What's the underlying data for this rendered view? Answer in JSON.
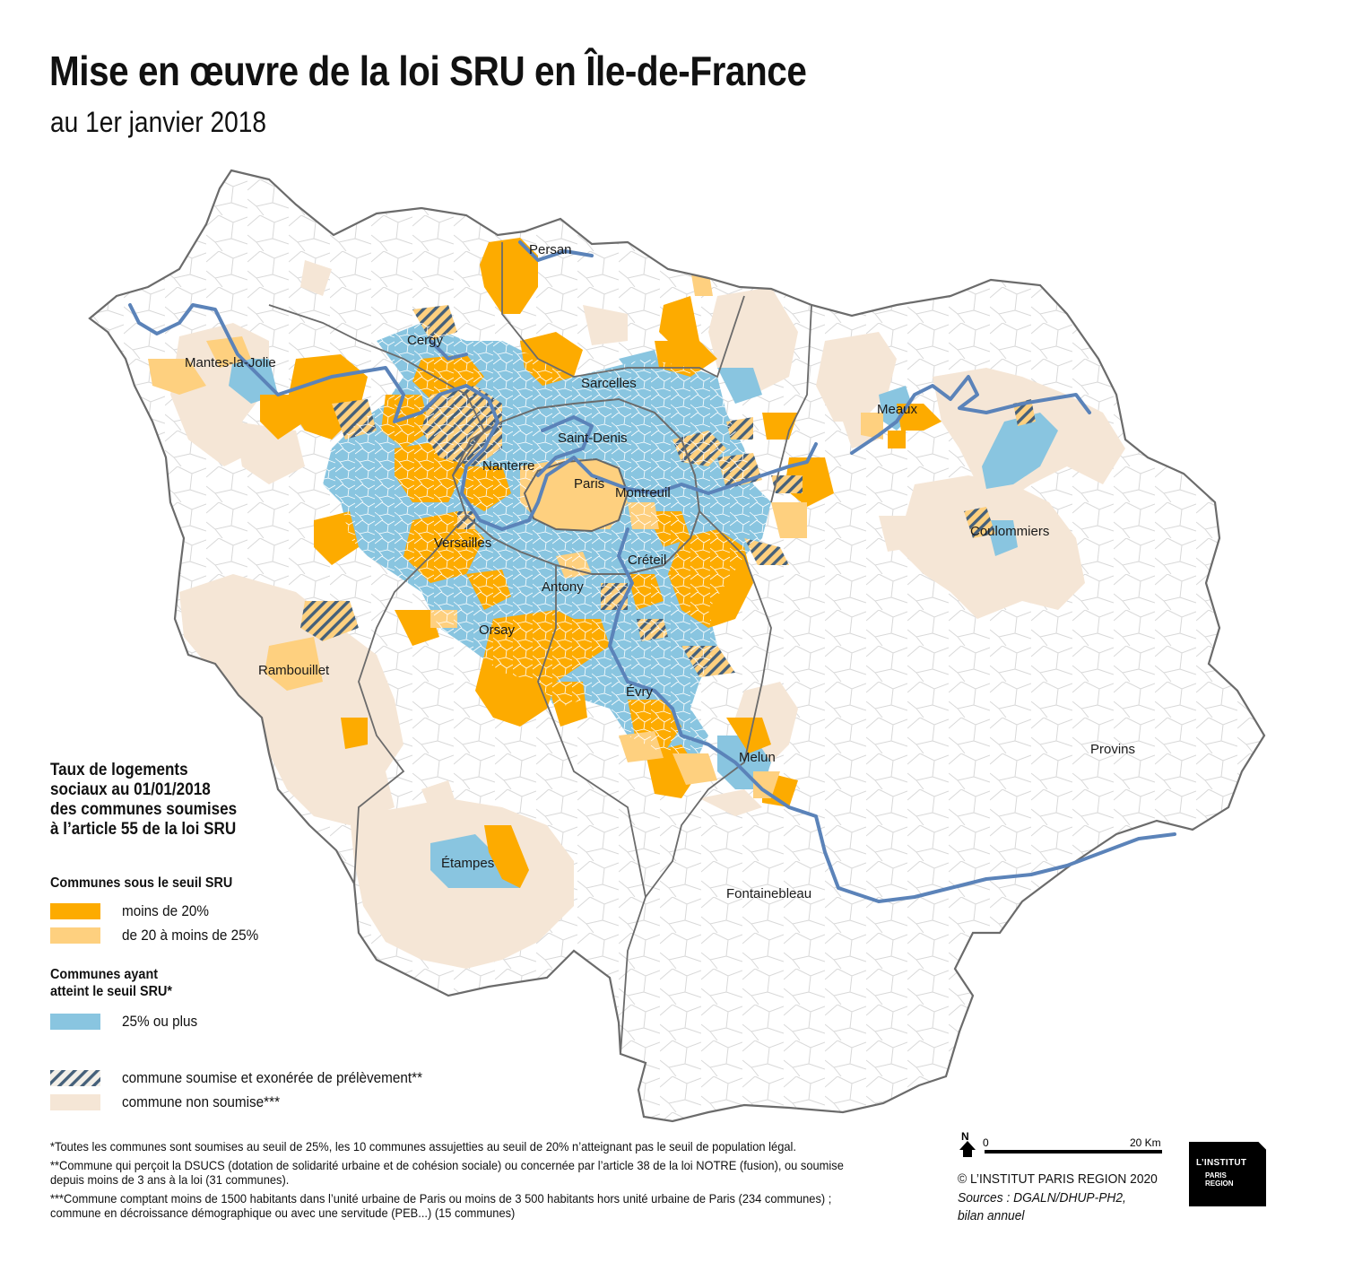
{
  "title": "Mise en œuvre de la loi SRU en Île-de-France",
  "subtitle": "au 1er janvier 2018",
  "colors": {
    "below20": "#fdab00",
    "from20to25": "#fed07f",
    "reached25": "#89c5e0",
    "exempt_hatch": "#45607a",
    "not_subject": "#f5e6d6",
    "river": "#5b83b9",
    "dept_border": "#6b6b6b",
    "commune_border": "#d4d4d4"
  },
  "cities": [
    {
      "name": "Persan"
    },
    {
      "name": "Cergy"
    },
    {
      "name": "Mantes-la-Jolie"
    },
    {
      "name": "Sarcelles"
    },
    {
      "name": "Meaux"
    },
    {
      "name": "Saint-Denis"
    },
    {
      "name": "Nanterre"
    },
    {
      "name": "Paris"
    },
    {
      "name": "Montreuil"
    },
    {
      "name": "Versailles"
    },
    {
      "name": "Coulommiers"
    },
    {
      "name": "Créteil"
    },
    {
      "name": "Antony"
    },
    {
      "name": "Orsay"
    },
    {
      "name": "Rambouillet"
    },
    {
      "name": "Évry"
    },
    {
      "name": "Provins"
    },
    {
      "name": "Melun"
    },
    {
      "name": "Étampes"
    },
    {
      "name": "Fontainebleau"
    }
  ],
  "legend": {
    "title_lines": [
      "Taux de logements",
      "sociaux au 01/01/2018",
      "des communes soumises",
      "à l’article 55 de la loi SRU"
    ],
    "section_below": "Communes sous le seuil SRU",
    "below20_label": "moins de 20%",
    "from20to25_label": "de 20 à moins de 25%",
    "section_reached_lines": [
      "Communes ayant",
      "atteint le seuil SRU*"
    ],
    "reached25_label": "25% ou plus",
    "exempt_label": "commune soumise et exonérée de prélèvement**",
    "not_subject_label": "commune non soumise***"
  },
  "notes": [
    "*Toutes les communes sont soumises au seuil de 25%, les 10 communes assujetties au seuil de 20% n’atteignant pas le seuil de population légal.",
    "**Commune qui perçoit la DSUCS (dotation de solidarité urbaine et de cohésion sociale) ou concernée par l’article 38 de la loi NOTRE (fusion), ou soumise depuis moins de 3 ans à la loi (31 communes).",
    "***Commune comptant moins de 1500 habitants dans l’unité urbaine de Paris ou moins de 3 500 habitants hors unité urbaine de Paris (234 communes) ; commune en décroissance démographique ou avec une servitude (PEB...) (15 communes)"
  ],
  "scale": {
    "north": "N",
    "start": "0",
    "end": "20 Km"
  },
  "credit": "© L’INSTITUT PARIS REGION 2020",
  "sources": "Sources : DGALN/DHUP-PH2, bilan annuel",
  "logo": {
    "line1": "L’INSTITUT",
    "line2": "PARIS",
    "line3": "REGION"
  }
}
